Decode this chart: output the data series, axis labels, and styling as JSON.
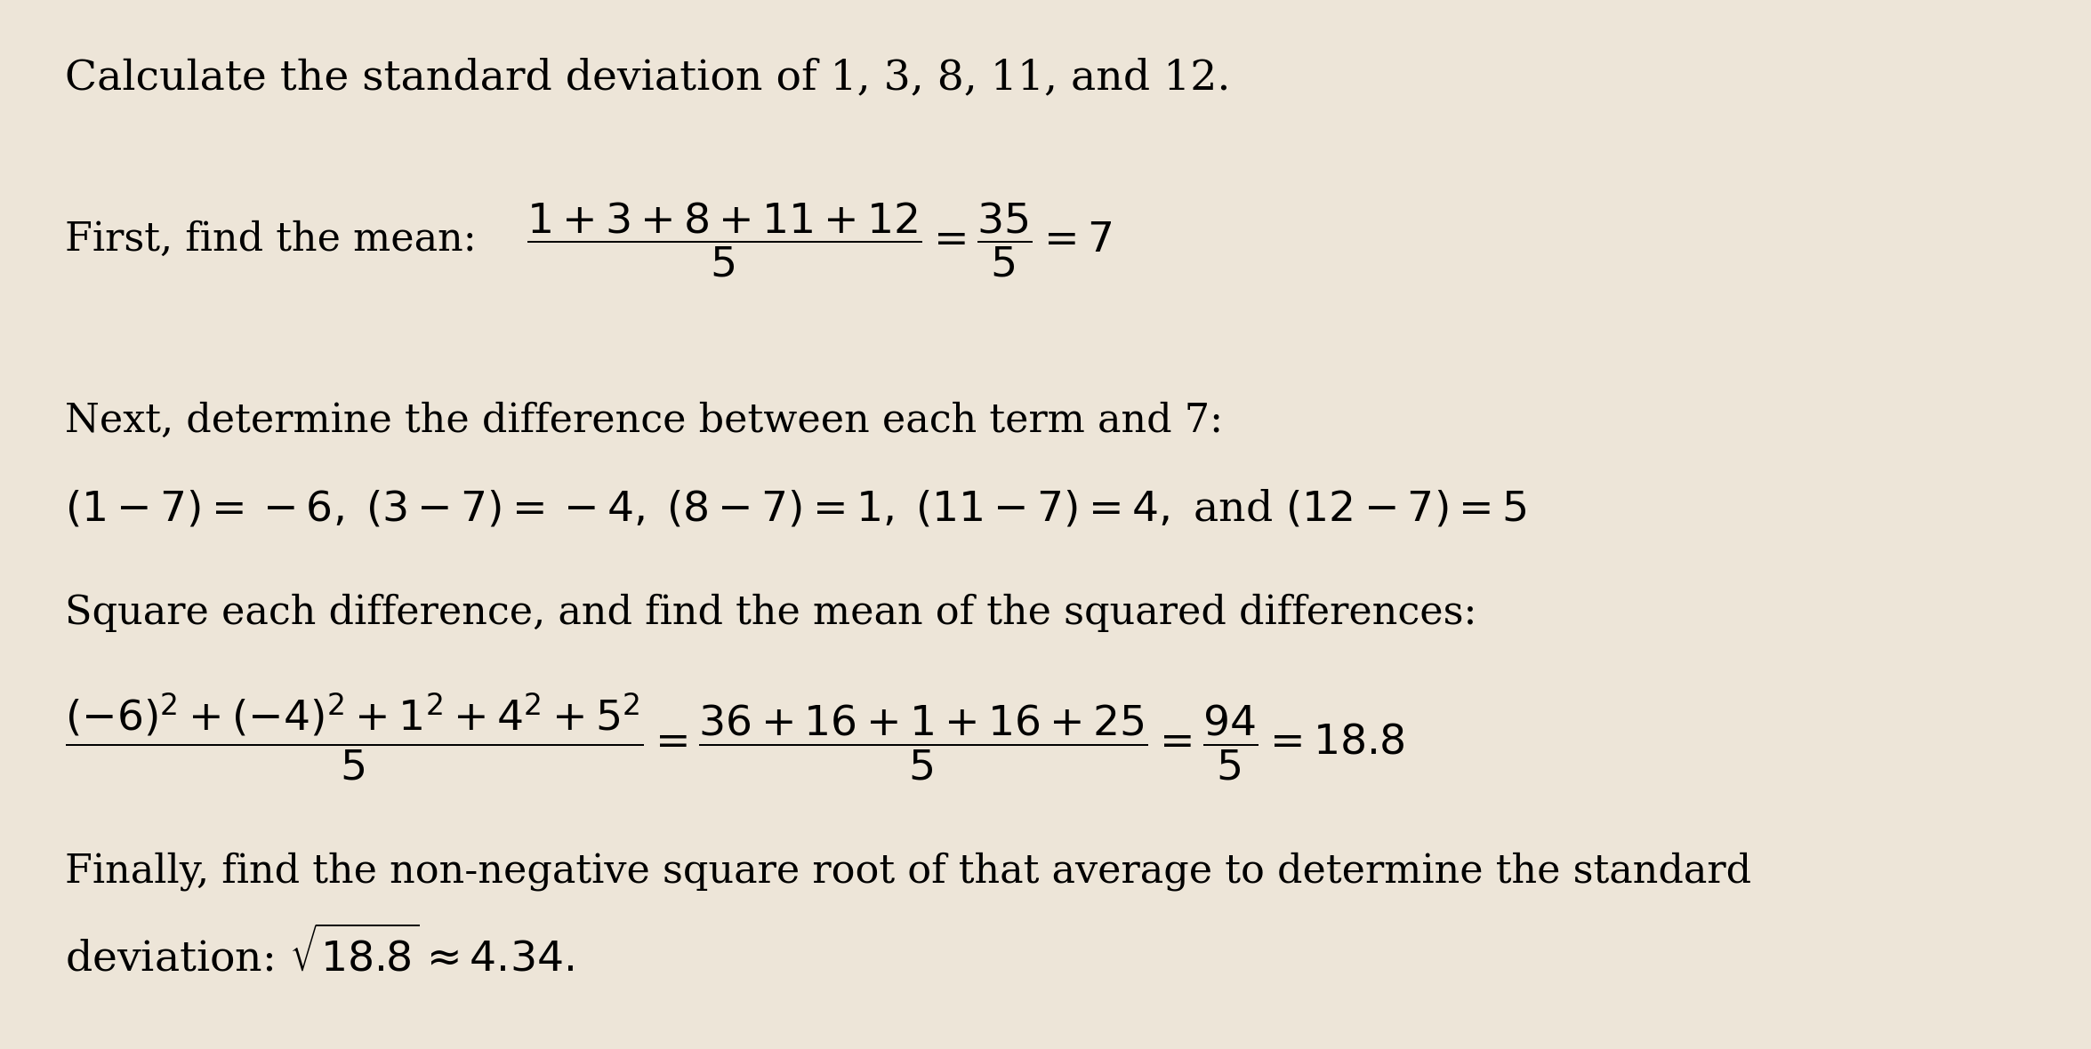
{
  "background_color": "#ede5d8",
  "fig_width": 23.51,
  "fig_height": 11.8,
  "dpi": 100,
  "fontsize_title": 34,
  "fontsize_body": 32,
  "fontsize_math": 34,
  "title": "Calculate the standard deviation of 1, 3, 8, 11, and 12.",
  "line1_label": "First, find the mean: ",
  "line1_math": "$\\dfrac{1+3+8+11+12}{5} = \\dfrac{35}{5} = 7$",
  "line2_text": "Next, determine the difference between each term and 7:",
  "line3_math": "$(1 - 7) = -6, \\; (3 - 7) = -4, \\; (8 - 7) = 1, \\; (11 - 7) = 4,$ and $(12 - 7) = 5$",
  "line4_text": "Square each difference, and find the mean of the squared differences:",
  "line5_math": "$\\dfrac{(-6)^2+(-4)^2+1^2+4^2+5^2}{5} = \\dfrac{36+16+1+16+25}{5} = \\dfrac{94}{5} = 18.8$",
  "line6_text": "Finally, find the non-negative square root of that average to determine the standard",
  "line7_math": "deviation: $\\sqrt{18.8} \\approx 4.34.$"
}
